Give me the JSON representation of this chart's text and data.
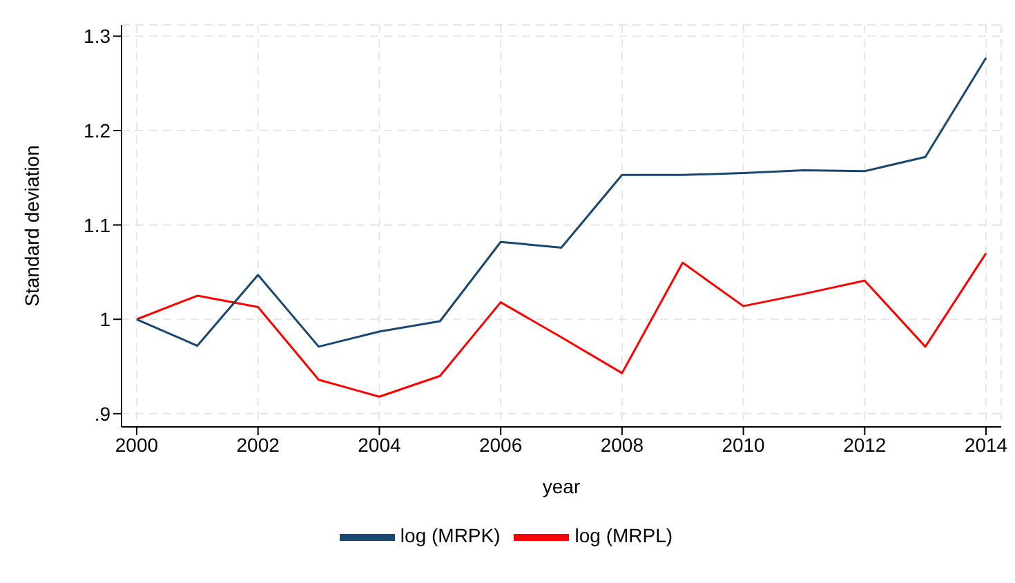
{
  "chart_data": {
    "type": "line",
    "xlabel": "year",
    "ylabel": "Standard deviation",
    "x": [
      2000,
      2001,
      2002,
      2003,
      2004,
      2005,
      2006,
      2007,
      2008,
      2009,
      2010,
      2011,
      2012,
      2013,
      2014
    ],
    "series": [
      {
        "name": "log (MRPL)",
        "color": "#ff0000",
        "values": [
          1.0,
          1.025,
          1.013,
          0.936,
          0.918,
          0.94,
          1.018,
          0.981,
          0.943,
          1.06,
          1.014,
          1.027,
          1.041,
          0.971,
          1.07
        ]
      },
      {
        "name": "log (MRPK)",
        "color": "#1a476f",
        "values": [
          1.0,
          0.972,
          1.047,
          0.971,
          0.987,
          0.998,
          1.082,
          1.076,
          1.153,
          1.153,
          1.155,
          1.158,
          1.157,
          1.172,
          1.277
        ]
      }
    ],
    "xlim": [
      1999.75,
      2014.25
    ],
    "xticks": [
      2000,
      2002,
      2004,
      2006,
      2008,
      2010,
      2012,
      2014
    ],
    "ylim": [
      0.886,
      1.312
    ],
    "yticks": [
      {
        "value": 0.9,
        "label": ".9"
      },
      1,
      1.1,
      1.2,
      1.3
    ],
    "grid": true,
    "legend": "bottom",
    "marker": "none",
    "line_style": "solid"
  }
}
